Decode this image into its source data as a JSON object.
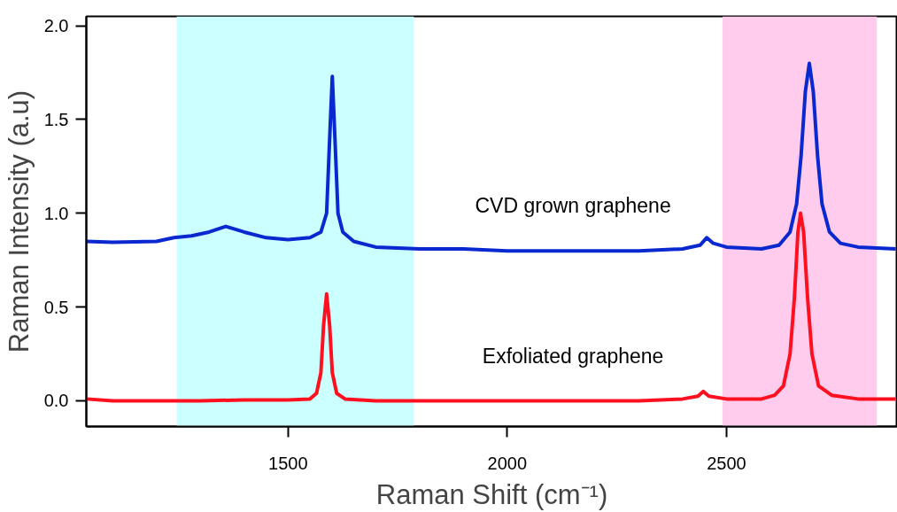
{
  "chart_data": {
    "type": "line",
    "xlabel": "Raman Shift (cm⁻¹)",
    "ylabel": "Raman Intensity (a.u)",
    "xlim": [
      1040,
      2890
    ],
    "ylim": [
      -0.137,
      2.05
    ],
    "xticks": [
      1500,
      2000,
      2500
    ],
    "yticks": [
      {
        "value": 0,
        "label": "0.0"
      },
      {
        "value": 0.5,
        "label": "0.5"
      },
      {
        "value": 1,
        "label": "1.0"
      },
      {
        "value": 1.5,
        "label": "1.5"
      },
      {
        "value": 2,
        "label": "2.0"
      }
    ],
    "grid": false,
    "legend": false,
    "marker": "none",
    "line_style": "solid",
    "bands": [
      {
        "axis": "x",
        "from": 1246,
        "to": 1787,
        "color": "#ccffff"
      },
      {
        "axis": "x",
        "from": 2491,
        "to": 2843,
        "color": "#ffccee"
      }
    ],
    "series": [
      {
        "name": "CVD grown graphene",
        "color": "#0a28d0",
        "x": [
          1040,
          1100,
          1200,
          1240,
          1280,
          1320,
          1358,
          1400,
          1450,
          1500,
          1550,
          1575,
          1588,
          1595,
          1601,
          1607,
          1614,
          1625,
          1650,
          1700,
          1800,
          1900,
          2000,
          2100,
          2200,
          2300,
          2400,
          2440,
          2455,
          2470,
          2500,
          2580,
          2620,
          2645,
          2660,
          2670,
          2680,
          2689,
          2698,
          2708,
          2718,
          2735,
          2760,
          2800,
          2886
        ],
        "values": [
          0.85,
          0.845,
          0.85,
          0.87,
          0.88,
          0.9,
          0.93,
          0.9,
          0.87,
          0.86,
          0.87,
          0.9,
          1.0,
          1.4,
          1.73,
          1.4,
          1.0,
          0.9,
          0.85,
          0.82,
          0.81,
          0.81,
          0.8,
          0.8,
          0.8,
          0.8,
          0.81,
          0.83,
          0.87,
          0.84,
          0.82,
          0.81,
          0.83,
          0.9,
          1.05,
          1.3,
          1.65,
          1.8,
          1.65,
          1.3,
          1.05,
          0.9,
          0.84,
          0.82,
          0.81
        ]
      },
      {
        "name": "Exfoliated graphene",
        "color": "#ff1020",
        "x": [
          1040,
          1100,
          1200,
          1300,
          1400,
          1500,
          1550,
          1565,
          1575,
          1581,
          1588,
          1595,
          1601,
          1611,
          1630,
          1700,
          1800,
          1900,
          2000,
          2100,
          2200,
          2300,
          2400,
          2435,
          2447,
          2460,
          2500,
          2580,
          2610,
          2630,
          2645,
          2655,
          2663,
          2669,
          2676,
          2685,
          2695,
          2710,
          2740,
          2800,
          2886
        ],
        "values": [
          0.01,
          0.0,
          0.0,
          0.0,
          0.005,
          0.005,
          0.01,
          0.04,
          0.15,
          0.4,
          0.57,
          0.4,
          0.15,
          0.04,
          0.01,
          0.0,
          0.0,
          0.0,
          0.0,
          0.0,
          0.0,
          0.0,
          0.01,
          0.025,
          0.05,
          0.025,
          0.01,
          0.01,
          0.03,
          0.08,
          0.25,
          0.55,
          0.9,
          1.0,
          0.9,
          0.55,
          0.25,
          0.08,
          0.03,
          0.01,
          0.01
        ]
      }
    ]
  }
}
